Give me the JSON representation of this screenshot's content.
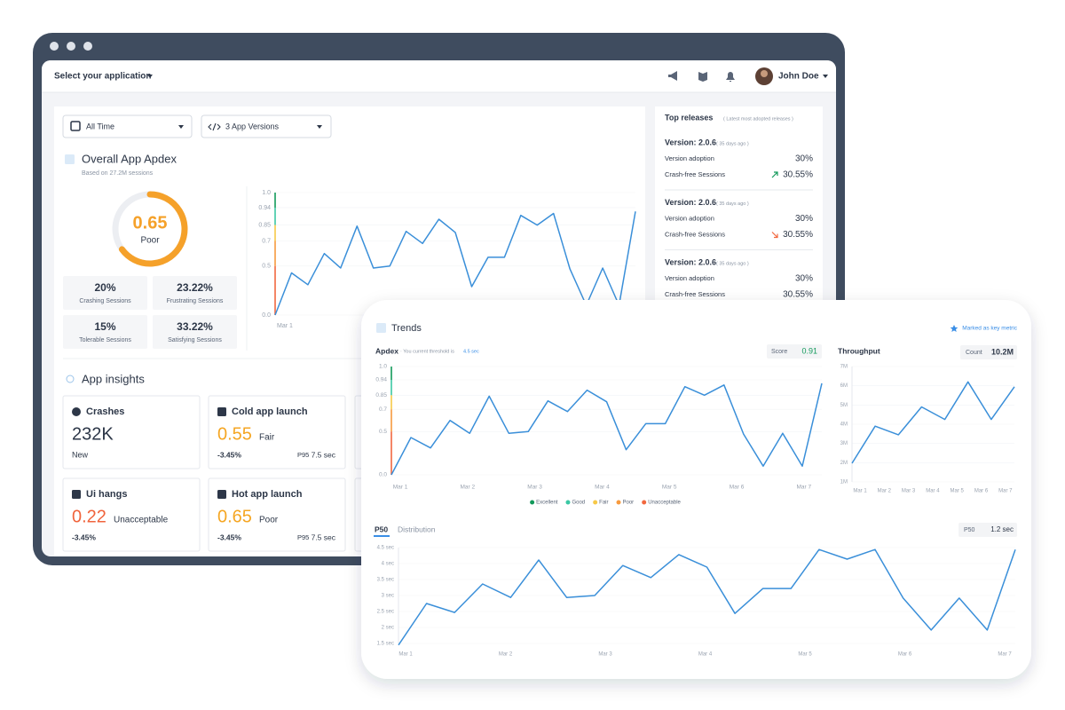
{
  "window": {
    "app_select": "Select your application",
    "user": "John Doe"
  },
  "filters": {
    "period": "All Time",
    "versions": "3 App Versions"
  },
  "apdex_panel": {
    "title": "Overall App Apdex",
    "subtitle": "Based on 27.2M sessions",
    "score": 0.65,
    "rating": "Poor",
    "stats": [
      {
        "value": "20%",
        "label": "Crashing Sessions"
      },
      {
        "value": "23.22%",
        "label": "Frustrating Sessions"
      },
      {
        "value": "15%",
        "label": "Tolerable Sessions"
      },
      {
        "value": "33.22%",
        "label": "Satisfying Sessions"
      }
    ]
  },
  "top_releases": {
    "title": "Top releases",
    "subtitle": "( Latest most adopted releases )",
    "releases": [
      {
        "version": "Version: 2.0.6",
        "age": "( 35 days ago )",
        "adoption_label": "Version adoption",
        "adoption": "30%",
        "crash_free_label": "Crash-free Sessions",
        "crash_free": "30.55%",
        "trend": "up"
      },
      {
        "version": "Version: 2.0.6",
        "age": "( 35 days ago )",
        "adoption_label": "Version adoption",
        "adoption": "30%",
        "crash_free_label": "Crash-free Sessions",
        "crash_free": "30.55%",
        "trend": "down"
      },
      {
        "version": "Version: 2.0.6",
        "age": "( 35 days ago )",
        "adoption_label": "Version adoption",
        "adoption": "30%",
        "crash_free_label": "Crash-free Sessions",
        "crash_free": "30.55%"
      }
    ]
  },
  "insights": {
    "title": "App insights",
    "cards": [
      {
        "title": "Crashes",
        "value": "232K",
        "caption": "New"
      },
      {
        "title": "Cold app launch",
        "value": "0.55",
        "rating": "Fair",
        "change": "-3.45%",
        "p95_label": "P95",
        "p95": "7.5 sec",
        "color": "#f5a623"
      },
      {
        "title": "Ui hangs",
        "value": "0.22",
        "rating": "Unacceptable",
        "change": "-3.45%",
        "color": "#f0643c"
      },
      {
        "title": "Hot app launch",
        "value": "0.65",
        "rating": "Poor",
        "change": "-3.45%",
        "p95_label": "P95",
        "p95": "7.5 sec",
        "color": "#f5a623"
      }
    ]
  },
  "trends": {
    "title": "Trends",
    "key_metric": "Marked as key metric",
    "apdex_title": "Apdex",
    "threshold_text": "· You current threshold is",
    "threshold": "4.5 sec",
    "score_label": "Score",
    "score": "0.91",
    "throughput_title": "Throughput",
    "count_label": "Count",
    "count": "10.2M",
    "tabs": [
      "P50",
      "Distribution"
    ],
    "p50_label": "P50",
    "p50": "1.2 sec"
  },
  "chart_data": [
    {
      "type": "line",
      "y_scale": "apdex",
      "ylim": [
        0,
        1
      ],
      "yticks": [
        {
          "value": 1,
          "label": "1.0"
        },
        0.94,
        0.85,
        0.7,
        0.5,
        {
          "value": 0,
          "label": "0.0"
        }
      ],
      "x_labels": [
        "Mar 1"
      ],
      "band_colors": [
        "#12995a",
        "#3cc8a4",
        "#f7c948",
        "#f79a3e",
        "#f2683f"
      ],
      "series": [
        {
          "color": "#3a8fd9",
          "values": [
            0,
            0.43,
            0.31,
            0.6,
            0.48,
            0.84,
            0.48,
            0.5,
            0.79,
            0.68,
            0.88,
            0.78,
            0.29,
            0.57,
            0.57,
            0.9,
            0.85,
            0.91,
            0.47,
            0.1,
            0.48,
            0.1,
            0.92
          ]
        }
      ]
    },
    {
      "type": "line",
      "y_scale": "apdex",
      "ylim": [
        0,
        1
      ],
      "yticks": [
        {
          "value": 1,
          "label": "1.0"
        },
        0.94,
        0.85,
        0.7,
        0.5,
        {
          "value": 0,
          "label": "0.0"
        }
      ],
      "x_labels": [
        "Mar 1",
        "Mar 2",
        "Mar 3",
        "Mar 4",
        "Mar 5",
        "Mar 6",
        "Mar 7"
      ],
      "legend": [
        {
          "name": "Excellent",
          "color": "#12995a"
        },
        {
          "name": "Good",
          "color": "#3cc8a4"
        },
        {
          "name": "Fair",
          "color": "#f7c948"
        },
        {
          "name": "Poor",
          "color": "#f79a3e"
        },
        {
          "name": "Unacceptable",
          "color": "#f2683f"
        }
      ],
      "series": [
        {
          "color": "#3a8fd9",
          "values": [
            0,
            0.43,
            0.31,
            0.6,
            0.48,
            0.84,
            0.48,
            0.5,
            0.79,
            0.68,
            0.88,
            0.78,
            0.29,
            0.57,
            0.57,
            0.9,
            0.85,
            0.91,
            0.47,
            0.1,
            0.48,
            0.1,
            0.92
          ]
        }
      ]
    },
    {
      "type": "line",
      "y_scale": "linear",
      "ylim": [
        1000000,
        7000000
      ],
      "yticks": [
        {
          "value": 7000000,
          "label": "7M"
        },
        {
          "value": 6000000,
          "label": "6M"
        },
        {
          "value": 5000000,
          "label": "5M"
        },
        {
          "value": 4000000,
          "label": "4M"
        },
        {
          "value": 3000000,
          "label": "3M"
        },
        {
          "value": 2000000,
          "label": "2M"
        },
        {
          "value": 1000000,
          "label": "1M"
        }
      ],
      "x_labels": [
        "Mar 1",
        "Mar 2",
        "Mar 3",
        "Mar 4",
        "Mar 5",
        "Mar 6",
        "Mar 7"
      ],
      "series": [
        {
          "color": "#3a8fd9",
          "values": [
            1970000,
            3900000,
            3450000,
            4900000,
            4250000,
            6200000,
            4250000,
            5950000
          ]
        }
      ]
    },
    {
      "type": "line",
      "y_scale": "linear",
      "ylim": [
        1.5,
        4.5
      ],
      "yticks": [
        {
          "value": 4.5,
          "label": "4.5 sec"
        },
        {
          "value": 4,
          "label": "4 sec"
        },
        {
          "value": 3.5,
          "label": "3.5 sec"
        },
        {
          "value": 3,
          "label": "3 sec"
        },
        {
          "value": 2.5,
          "label": "2.5 sec"
        },
        {
          "value": 2,
          "label": "2 sec"
        },
        {
          "value": 1.5,
          "label": "1.5 sec"
        }
      ],
      "x_labels": [
        "Mar 1",
        "Mar 2",
        "Mar 3",
        "Mar 4",
        "Mar 5",
        "Mar 6",
        "Mar 7"
      ],
      "series": [
        {
          "color": "#3a8fd9",
          "values": [
            1.45,
            2.75,
            2.47,
            3.36,
            2.94,
            4.11,
            2.94,
            3.0,
            3.94,
            3.56,
            4.28,
            3.89,
            2.44,
            3.22,
            3.22,
            4.44,
            4.14,
            4.44,
            2.92,
            1.92,
            2.92,
            1.92,
            4.44
          ]
        }
      ]
    }
  ]
}
